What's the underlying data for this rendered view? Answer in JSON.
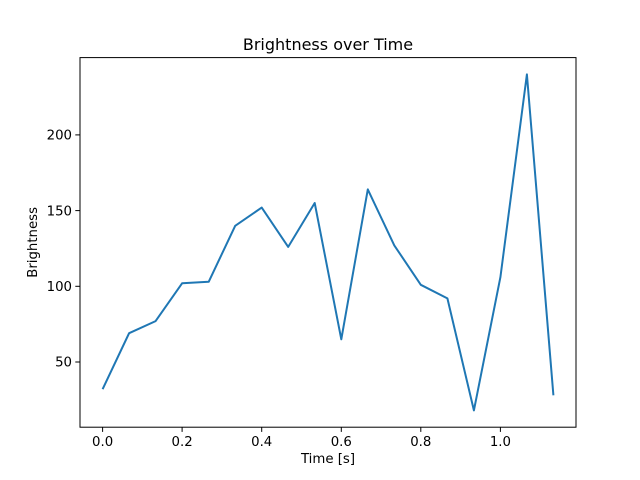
{
  "figure": {
    "background": "#ffffff",
    "text_color": "#000000"
  },
  "chart_data": {
    "type": "line",
    "title": "Brightness over Time",
    "xlabel": "Time [s]",
    "ylabel": "Brightness",
    "x": [
      0.0,
      0.0667,
      0.1333,
      0.2,
      0.2667,
      0.3333,
      0.4,
      0.4667,
      0.5333,
      0.6,
      0.6667,
      0.7333,
      0.8,
      0.8667,
      0.9333,
      1.0,
      1.0667,
      1.1333
    ],
    "values": [
      32,
      69,
      77,
      102,
      103,
      140,
      152,
      126,
      155,
      65,
      164,
      127,
      101,
      92,
      18,
      106,
      240,
      28
    ],
    "series_name": "brightness",
    "line_color": "#1f77b4",
    "xlim": [
      -0.0567,
      1.19
    ],
    "ylim": [
      6.9,
      251.1
    ],
    "x_ticks": {
      "values": [
        0.0,
        0.2,
        0.4,
        0.6,
        0.8,
        1.0
      ],
      "labels": [
        "0.0",
        "0.2",
        "0.4",
        "0.6",
        "0.8",
        "1.0"
      ]
    },
    "y_ticks": {
      "values": [
        50,
        100,
        150,
        200
      ],
      "labels": [
        "50",
        "100",
        "150",
        "200"
      ]
    },
    "grid": false,
    "legend": "none"
  }
}
